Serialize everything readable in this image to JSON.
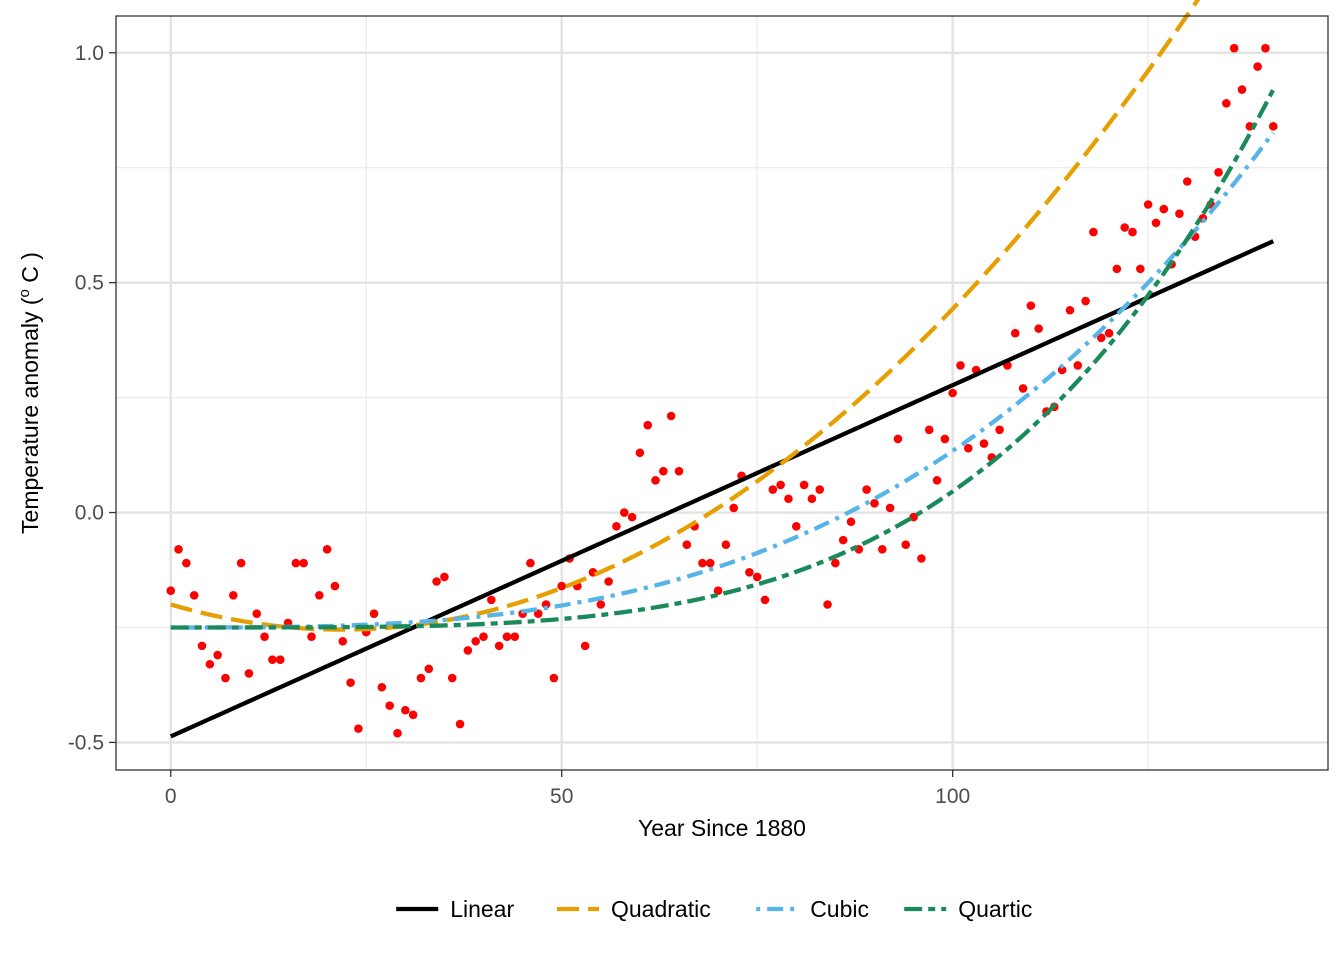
{
  "chart_data": {
    "type": "scatter",
    "title": "",
    "xlabel": "Year Since 1880",
    "ylabel_main": "Temperature anomaly  (",
    "ylabel_sup": "o",
    "ylabel_unit": " C )",
    "xlim": [
      -7,
      148
    ],
    "ylim": [
      -0.56,
      1.08
    ],
    "x_ticks": [
      0,
      50,
      100
    ],
    "x_minor_ticks": [
      25,
      75,
      125
    ],
    "y_ticks": [
      -0.5,
      0.0,
      0.5,
      1.0
    ],
    "y_tick_labels": [
      "-0.5",
      "0.0",
      "0.5",
      "1.0"
    ],
    "y_minor_ticks": [
      -0.25,
      0.25,
      0.75
    ],
    "grid": true,
    "legend_position": "bottom",
    "point_color": "#ff0000",
    "points": [
      [
        0,
        -0.17
      ],
      [
        1,
        -0.08
      ],
      [
        2,
        -0.11
      ],
      [
        3,
        -0.18
      ],
      [
        4,
        -0.29
      ],
      [
        5,
        -0.33
      ],
      [
        6,
        -0.31
      ],
      [
        7,
        -0.36
      ],
      [
        8,
        -0.18
      ],
      [
        9,
        -0.11
      ],
      [
        10,
        -0.35
      ],
      [
        11,
        -0.22
      ],
      [
        12,
        -0.27
      ],
      [
        13,
        -0.32
      ],
      [
        14,
        -0.32
      ],
      [
        15,
        -0.24
      ],
      [
        16,
        -0.11
      ],
      [
        17,
        -0.11
      ],
      [
        18,
        -0.27
      ],
      [
        19,
        -0.18
      ],
      [
        20,
        -0.08
      ],
      [
        21,
        -0.16
      ],
      [
        22,
        -0.28
      ],
      [
        23,
        -0.37
      ],
      [
        24,
        -0.47
      ],
      [
        25,
        -0.26
      ],
      [
        26,
        -0.22
      ],
      [
        27,
        -0.38
      ],
      [
        28,
        -0.42
      ],
      [
        29,
        -0.48
      ],
      [
        30,
        -0.43
      ],
      [
        31,
        -0.44
      ],
      [
        32,
        -0.36
      ],
      [
        33,
        -0.34
      ],
      [
        34,
        -0.15
      ],
      [
        35,
        -0.14
      ],
      [
        36,
        -0.36
      ],
      [
        37,
        -0.46
      ],
      [
        38,
        -0.3
      ],
      [
        39,
        -0.28
      ],
      [
        40,
        -0.27
      ],
      [
        41,
        -0.19
      ],
      [
        42,
        -0.29
      ],
      [
        43,
        -0.27
      ],
      [
        44,
        -0.27
      ],
      [
        45,
        -0.22
      ],
      [
        46,
        -0.11
      ],
      [
        47,
        -0.22
      ],
      [
        48,
        -0.2
      ],
      [
        49,
        -0.36
      ],
      [
        50,
        -0.16
      ],
      [
        51,
        -0.1
      ],
      [
        52,
        -0.16
      ],
      [
        53,
        -0.29
      ],
      [
        54,
        -0.13
      ],
      [
        55,
        -0.2
      ],
      [
        56,
        -0.15
      ],
      [
        57,
        -0.03
      ],
      [
        58,
        0.0
      ],
      [
        59,
        -0.01
      ],
      [
        60,
        0.13
      ],
      [
        61,
        0.19
      ],
      [
        62,
        0.07
      ],
      [
        63,
        0.09
      ],
      [
        64,
        0.21
      ],
      [
        65,
        0.09
      ],
      [
        66,
        -0.07
      ],
      [
        67,
        -0.03
      ],
      [
        68,
        -0.11
      ],
      [
        69,
        -0.11
      ],
      [
        70,
        -0.17
      ],
      [
        71,
        -0.07
      ],
      [
        72,
        0.01
      ],
      [
        73,
        0.08
      ],
      [
        74,
        -0.13
      ],
      [
        75,
        -0.14
      ],
      [
        76,
        -0.19
      ],
      [
        77,
        0.05
      ],
      [
        78,
        0.06
      ],
      [
        79,
        0.03
      ],
      [
        80,
        -0.03
      ],
      [
        81,
        0.06
      ],
      [
        82,
        0.03
      ],
      [
        83,
        0.05
      ],
      [
        84,
        -0.2
      ],
      [
        85,
        -0.11
      ],
      [
        86,
        -0.06
      ],
      [
        87,
        -0.02
      ],
      [
        88,
        -0.08
      ],
      [
        89,
        0.05
      ],
      [
        90,
        0.02
      ],
      [
        91,
        -0.08
      ],
      [
        92,
        0.01
      ],
      [
        93,
        0.16
      ],
      [
        94,
        -0.07
      ],
      [
        95,
        -0.01
      ],
      [
        96,
        -0.1
      ],
      [
        97,
        0.18
      ],
      [
        98,
        0.07
      ],
      [
        99,
        0.16
      ],
      [
        100,
        0.26
      ],
      [
        101,
        0.32
      ],
      [
        102,
        0.14
      ],
      [
        103,
        0.31
      ],
      [
        104,
        0.15
      ],
      [
        105,
        0.12
      ],
      [
        106,
        0.18
      ],
      [
        107,
        0.32
      ],
      [
        108,
        0.39
      ],
      [
        109,
        0.27
      ],
      [
        110,
        0.45
      ],
      [
        111,
        0.4
      ],
      [
        112,
        0.22
      ],
      [
        113,
        0.23
      ],
      [
        114,
        0.31
      ],
      [
        115,
        0.44
      ],
      [
        116,
        0.32
      ],
      [
        117,
        0.46
      ],
      [
        118,
        0.61
      ],
      [
        119,
        0.38
      ],
      [
        120,
        0.39
      ],
      [
        121,
        0.53
      ],
      [
        122,
        0.62
      ],
      [
        123,
        0.61
      ],
      [
        124,
        0.53
      ],
      [
        125,
        0.67
      ],
      [
        126,
        0.63
      ],
      [
        127,
        0.66
      ],
      [
        128,
        0.54
      ],
      [
        129,
        0.65
      ],
      [
        130,
        0.72
      ],
      [
        131,
        0.6
      ],
      [
        132,
        0.64
      ],
      [
        133,
        0.67
      ],
      [
        134,
        0.74
      ],
      [
        135,
        0.89
      ],
      [
        136,
        1.01
      ],
      [
        137,
        0.92
      ],
      [
        138,
        0.84
      ],
      [
        139,
        0.97
      ],
      [
        140,
        1.01
      ],
      [
        141,
        0.84
      ]
    ],
    "series": [
      {
        "name": "Linear",
        "color": "#000000",
        "dash": "solid",
        "coefficients": [
          -0.487,
          0.00764
        ]
      },
      {
        "name": "Quadratic",
        "color": "#E69F00",
        "dash": "longdash",
        "coefficients": [
          -0.2,
          -0.005,
          0.0001143
        ]
      },
      {
        "name": "Cubic",
        "color": "#56B4E9",
        "dash": "dotdash",
        "coefficients": [
          -0.25,
          0.0,
          0.0,
          3.84e-07
        ]
      },
      {
        "name": "Quartic",
        "color": "#1B8A5A",
        "dash": "twodash",
        "coefficients": [
          -0.25,
          0.0,
          0.0,
          0.0,
          2.96e-09
        ]
      }
    ],
    "fit_x_range": [
      0,
      141
    ]
  }
}
